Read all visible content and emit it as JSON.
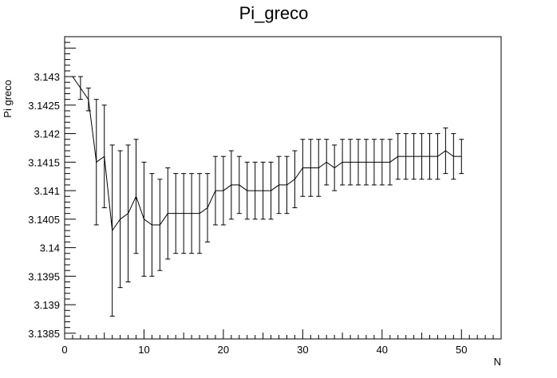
{
  "chart_data": {
    "type": "line",
    "title": "Pi_greco",
    "xlabel": "N",
    "ylabel": "Pi greco",
    "xlim": [
      0,
      55
    ],
    "ylim": [
      3.1384,
      3.1437
    ],
    "x_ticks": [
      0,
      10,
      20,
      30,
      40,
      50
    ],
    "x_tick_labels": [
      "0",
      "10",
      "20",
      "30",
      "40",
      "50"
    ],
    "y_ticks": [
      3.1385,
      3.139,
      3.1395,
      3.14,
      3.1405,
      3.141,
      3.1415,
      3.142,
      3.1425,
      3.143
    ],
    "y_tick_labels": [
      "3.1385",
      "3.139",
      "3.1395",
      "3.14",
      "3.1405",
      "3.141",
      "3.1415",
      "3.142",
      "3.1425",
      "3.143"
    ],
    "grid": false,
    "legend": false,
    "series": [
      {
        "x": [
          1,
          2,
          3,
          4,
          5,
          6,
          7,
          8,
          9,
          10,
          11,
          12,
          13,
          14,
          15,
          16,
          17,
          18,
          19,
          20,
          21,
          22,
          23,
          24,
          25,
          26,
          27,
          28,
          29,
          30,
          31,
          32,
          33,
          34,
          35,
          36,
          37,
          38,
          39,
          40,
          41,
          42,
          43,
          44,
          45,
          46,
          47,
          48,
          49,
          50
        ],
        "y": [
          3.143,
          3.1428,
          3.1426,
          3.1415,
          3.1416,
          3.1403,
          3.1405,
          3.1406,
          3.1409,
          3.1405,
          3.1404,
          3.1404,
          3.1406,
          3.1406,
          3.1406,
          3.1406,
          3.1406,
          3.1407,
          3.141,
          3.141,
          3.1411,
          3.1411,
          3.141,
          3.141,
          3.141,
          3.141,
          3.1411,
          3.1411,
          3.1412,
          3.1414,
          3.1414,
          3.1414,
          3.1415,
          3.1414,
          3.1415,
          3.1415,
          3.1415,
          3.1415,
          3.1415,
          3.1415,
          3.1415,
          3.1416,
          3.1416,
          3.1416,
          3.1416,
          3.1416,
          3.1416,
          3.1417,
          3.1416,
          3.1416
        ],
        "err": [
          0.0,
          0.0002,
          0.0002,
          0.0011,
          0.0009,
          0.0015,
          0.0012,
          0.0012,
          0.001,
          0.001,
          0.0009,
          0.0008,
          0.0008,
          0.0007,
          0.0007,
          0.0007,
          0.0007,
          0.0006,
          0.0006,
          0.0006,
          0.0006,
          0.0005,
          0.0005,
          0.0005,
          0.0005,
          0.0005,
          0.0005,
          0.0005,
          0.0005,
          0.0005,
          0.0005,
          0.0005,
          0.0004,
          0.0004,
          0.0004,
          0.0004,
          0.0004,
          0.0004,
          0.0004,
          0.0004,
          0.0004,
          0.0004,
          0.0004,
          0.0004,
          0.0004,
          0.0004,
          0.0004,
          0.0004,
          0.0004,
          0.0003
        ]
      }
    ]
  }
}
